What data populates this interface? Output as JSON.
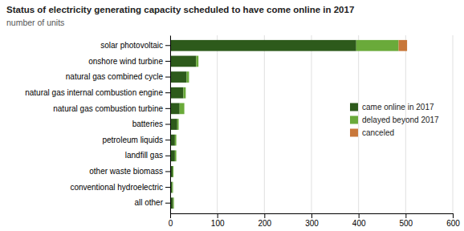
{
  "chart_data": {
    "type": "bar",
    "orientation": "horizontal",
    "stacked": true,
    "title": "Status of electricity generating capacity scheduled to have come online in 2017",
    "subtitle": "number of units",
    "categories": [
      "solar photovoltaic",
      "onshore wind turbine",
      "natural gas combined cycle",
      "natural gas internal combustion engine",
      "natural gas combustion turbine",
      "batteries",
      "petroleum liquids",
      "landfill gas",
      "other waste biomass",
      "conventional hydroelectric",
      "all other"
    ],
    "series": [
      {
        "name": "came online in 2017",
        "color": "#2d5a1b",
        "values": [
          395,
          55,
          35,
          28,
          20,
          15,
          10,
          10,
          5,
          4,
          6
        ]
      },
      {
        "name": "delayed beyond 2017",
        "color": "#6aaa3a",
        "values": [
          90,
          5,
          5,
          5,
          10,
          3,
          3,
          3,
          2,
          2,
          2
        ]
      },
      {
        "name": "canceled",
        "color": "#c8773a",
        "values": [
          18,
          0,
          0,
          0,
          0,
          0,
          0,
          0,
          0,
          0,
          0
        ]
      }
    ],
    "xlim": [
      0,
      600
    ],
    "xticks": [
      0,
      100,
      200,
      300,
      400,
      500,
      600
    ],
    "grid": true,
    "legend": "right"
  }
}
